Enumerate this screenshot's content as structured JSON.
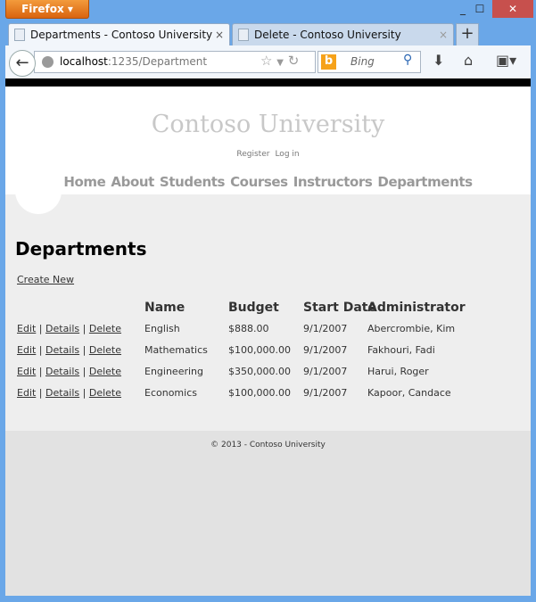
{
  "browser": {
    "menu_button": "Firefox",
    "tabs": [
      {
        "title": "Departments - Contoso University"
      },
      {
        "title": "Delete - Contoso University"
      }
    ],
    "url_host": "localhost",
    "url_rest": ":1235/Department",
    "search_placeholder": "Bing",
    "close": "×",
    "new_tab": "+"
  },
  "site": {
    "title": "Contoso University",
    "register": "Register",
    "login": "Log in",
    "menu": [
      "Home",
      "About",
      "Students",
      "Courses",
      "Instructors",
      "Departments"
    ]
  },
  "page": {
    "heading": "Departments",
    "create_new": "Create New",
    "columns": [
      "Name",
      "Budget",
      "Start Date",
      "Administrator"
    ],
    "actions": [
      "Edit",
      "Details",
      "Delete"
    ],
    "rows": [
      {
        "name": "English",
        "budget": "$888.00",
        "start": "9/1/2007",
        "admin": "Abercrombie, Kim"
      },
      {
        "name": "Mathematics",
        "budget": "$100,000.00",
        "start": "9/1/2007",
        "admin": "Fakhouri, Fadi"
      },
      {
        "name": "Engineering",
        "budget": "$350,000.00",
        "start": "9/1/2007",
        "admin": "Harui, Roger"
      },
      {
        "name": "Economics",
        "budget": "$100,000.00",
        "start": "9/1/2007",
        "admin": "Kapoor, Candace"
      }
    ]
  },
  "footer": "© 2013 - Contoso University"
}
